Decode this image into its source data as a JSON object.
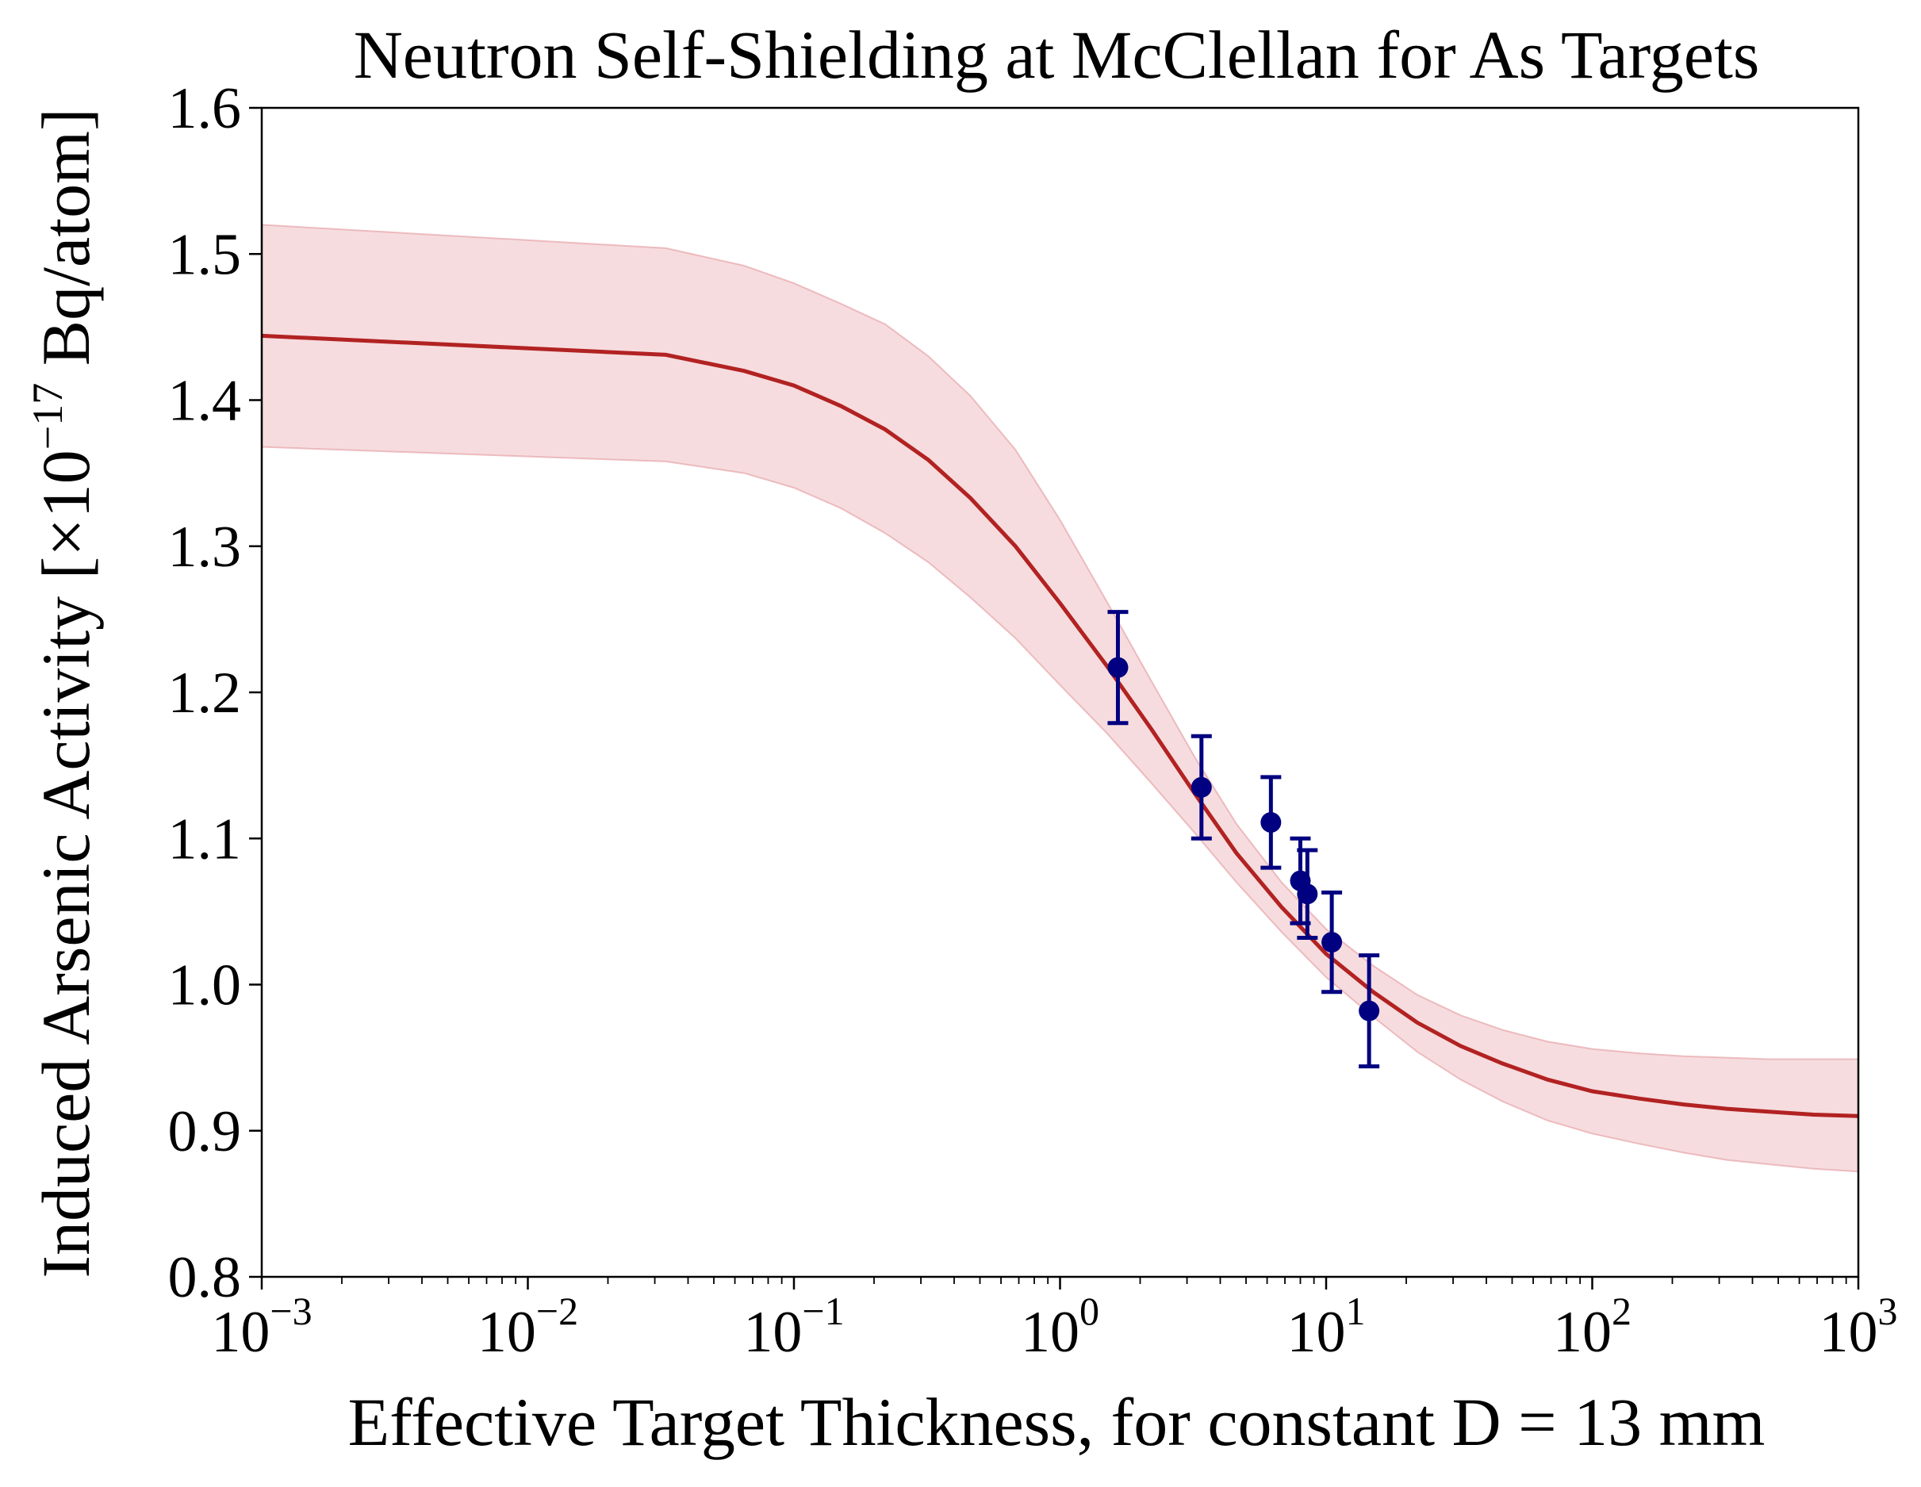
{
  "chart_data": {
    "type": "line",
    "title": "Neutron Self-Shielding at McClellan for As Targets",
    "xlabel": "Effective Target Thickness, for constant D = 13 mm",
    "ylabel": {
      "main": "Induced Arsenic Activity [×10",
      "exponent": "−17",
      "suffix": " Bq/atom]"
    },
    "xscale": "log",
    "xlim": [
      0.001,
      1000
    ],
    "ylim": [
      0.8,
      1.6
    ],
    "x_ticks": [
      {
        "value": 0.001,
        "base": "10",
        "exp": "−3"
      },
      {
        "value": 0.01,
        "base": "10",
        "exp": "−2"
      },
      {
        "value": 0.1,
        "base": "10",
        "exp": "−1"
      },
      {
        "value": 1,
        "base": "10",
        "exp": "0"
      },
      {
        "value": 10,
        "base": "10",
        "exp": "1"
      },
      {
        "value": 100,
        "base": "10",
        "exp": "2"
      },
      {
        "value": 1000,
        "base": "10",
        "exp": "3"
      }
    ],
    "y_ticks": [
      "0.8",
      "0.9",
      "1.0",
      "1.1",
      "1.2",
      "1.3",
      "1.4",
      "1.5",
      "1.6"
    ],
    "colors": {
      "fit_line": "#b22222",
      "band_fill": "#e8a3a8",
      "band_edge": "#e08a90",
      "points": "#000080"
    },
    "series": [
      {
        "name": "fit",
        "kind": "line",
        "x": [
          0.001,
          0.033,
          0.065,
          0.1,
          0.15,
          0.22,
          0.32,
          0.46,
          0.68,
          1.0,
          1.5,
          2.2,
          3.2,
          4.6,
          6.8,
          10,
          15,
          22,
          32,
          46,
          68,
          100,
          150,
          220,
          320,
          460,
          680,
          1000
        ],
        "y": [
          1.444,
          1.431,
          1.42,
          1.41,
          1.396,
          1.38,
          1.359,
          1.333,
          1.3,
          1.261,
          1.218,
          1.175,
          1.131,
          1.09,
          1.053,
          1.021,
          0.995,
          0.974,
          0.958,
          0.946,
          0.935,
          0.927,
          0.922,
          0.918,
          0.915,
          0.913,
          0.911,
          0.91
        ]
      },
      {
        "name": "uncertainty band",
        "kind": "band",
        "x": [
          0.001,
          0.033,
          0.065,
          0.1,
          0.15,
          0.22,
          0.32,
          0.46,
          0.68,
          1.0,
          1.5,
          2.2,
          3.2,
          4.6,
          6.8,
          10,
          15,
          22,
          32,
          46,
          68,
          100,
          150,
          220,
          320,
          460,
          680,
          1000
        ],
        "lower": [
          1.368,
          1.358,
          1.35,
          1.34,
          1.326,
          1.309,
          1.289,
          1.265,
          1.237,
          1.205,
          1.172,
          1.138,
          1.104,
          1.07,
          1.036,
          1.005,
          0.978,
          0.954,
          0.935,
          0.92,
          0.907,
          0.898,
          0.891,
          0.885,
          0.88,
          0.877,
          0.874,
          0.872
        ],
        "upper": [
          1.52,
          1.504,
          1.492,
          1.48,
          1.466,
          1.452,
          1.43,
          1.403,
          1.366,
          1.318,
          1.262,
          1.208,
          1.156,
          1.11,
          1.07,
          1.038,
          1.013,
          0.993,
          0.979,
          0.969,
          0.961,
          0.956,
          0.953,
          0.951,
          0.95,
          0.949,
          0.949,
          0.949
        ]
      },
      {
        "name": "measurements",
        "kind": "errorbar",
        "points": [
          {
            "x": 1.65,
            "y": 1.217,
            "err": 0.038
          },
          {
            "x": 3.4,
            "y": 1.135,
            "err": 0.035
          },
          {
            "x": 6.2,
            "y": 1.111,
            "err": 0.031
          },
          {
            "x": 8.0,
            "y": 1.071,
            "err": 0.029
          },
          {
            "x": 8.5,
            "y": 1.062,
            "err": 0.03
          },
          {
            "x": 10.5,
            "y": 1.029,
            "err": 0.034
          },
          {
            "x": 14.5,
            "y": 0.982,
            "err": 0.038
          }
        ]
      }
    ]
  }
}
